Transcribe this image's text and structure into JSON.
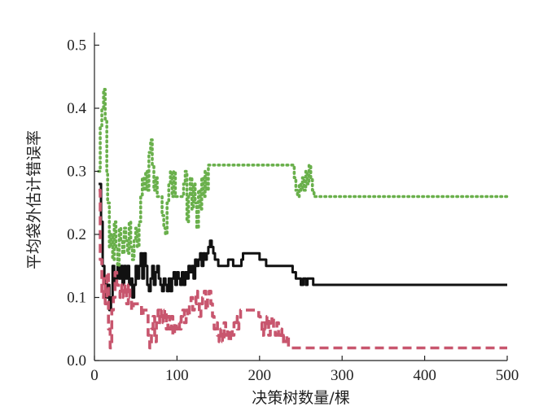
{
  "chart_data": {
    "type": "line",
    "xlabel": "决策树数量/棵",
    "ylabel": "平均袋外估计错误率",
    "xlim": [
      0,
      500
    ],
    "ylim": [
      0,
      0.52
    ],
    "x_ticks": [
      0,
      100,
      200,
      300,
      400,
      500
    ],
    "y_ticks": [
      0.0,
      0.1,
      0.2,
      0.3,
      0.4,
      0.5
    ],
    "x_tick_labels": [
      "0",
      "100",
      "200",
      "300",
      "400",
      "500"
    ],
    "y_tick_labels": [
      "0.0",
      "0.1",
      "0.2",
      "0.3",
      "0.4",
      "0.5"
    ],
    "grid": false,
    "legend": "none",
    "series": [
      {
        "color": "#111111",
        "style": "solid",
        "points": [
          [
            5,
            0.28
          ],
          [
            8,
            0.22
          ],
          [
            10,
            0.15
          ],
          [
            12,
            0.13
          ],
          [
            14,
            0.1
          ],
          [
            16,
            0.12
          ],
          [
            18,
            0.08
          ],
          [
            20,
            0.1
          ],
          [
            22,
            0.15
          ],
          [
            24,
            0.12
          ],
          [
            26,
            0.13
          ],
          [
            28,
            0.15
          ],
          [
            30,
            0.13
          ],
          [
            32,
            0.15
          ],
          [
            34,
            0.12
          ],
          [
            36,
            0.15
          ],
          [
            38,
            0.13
          ],
          [
            40,
            0.15
          ],
          [
            42,
            0.12
          ],
          [
            44,
            0.13
          ],
          [
            46,
            0.1
          ],
          [
            48,
            0.12
          ],
          [
            50,
            0.15
          ],
          [
            52,
            0.13
          ],
          [
            54,
            0.15
          ],
          [
            56,
            0.17
          ],
          [
            58,
            0.13
          ],
          [
            60,
            0.17
          ],
          [
            62,
            0.15
          ],
          [
            64,
            0.12
          ],
          [
            66,
            0.11
          ],
          [
            68,
            0.13
          ],
          [
            70,
            0.15
          ],
          [
            72,
            0.12
          ],
          [
            74,
            0.14
          ],
          [
            76,
            0.15
          ],
          [
            78,
            0.13
          ],
          [
            80,
            0.12
          ],
          [
            82,
            0.11
          ],
          [
            84,
            0.13
          ],
          [
            86,
            0.12
          ],
          [
            88,
            0.11
          ],
          [
            90,
            0.13
          ],
          [
            92,
            0.11
          ],
          [
            94,
            0.13
          ],
          [
            96,
            0.14
          ],
          [
            98,
            0.12
          ],
          [
            100,
            0.14
          ],
          [
            102,
            0.13
          ],
          [
            104,
            0.12
          ],
          [
            106,
            0.14
          ],
          [
            108,
            0.12
          ],
          [
            110,
            0.14
          ],
          [
            112,
            0.13
          ],
          [
            114,
            0.15
          ],
          [
            116,
            0.14
          ],
          [
            118,
            0.15
          ],
          [
            120,
            0.13
          ],
          [
            122,
            0.16
          ],
          [
            124,
            0.15
          ],
          [
            126,
            0.16
          ],
          [
            128,
            0.17
          ],
          [
            130,
            0.15
          ],
          [
            132,
            0.17
          ],
          [
            134,
            0.16
          ],
          [
            136,
            0.17
          ],
          [
            138,
            0.18
          ],
          [
            140,
            0.19
          ],
          [
            142,
            0.18
          ],
          [
            144,
            0.17
          ],
          [
            146,
            0.16
          ],
          [
            150,
            0.15
          ],
          [
            158,
            0.15
          ],
          [
            162,
            0.16
          ],
          [
            168,
            0.15
          ],
          [
            178,
            0.16
          ],
          [
            180,
            0.17
          ],
          [
            198,
            0.17
          ],
          [
            200,
            0.16
          ],
          [
            208,
            0.15
          ],
          [
            238,
            0.15
          ],
          [
            240,
            0.14
          ],
          [
            244,
            0.13
          ],
          [
            250,
            0.12
          ],
          [
            253,
            0.13
          ],
          [
            256,
            0.12
          ],
          [
            258,
            0.13
          ],
          [
            262,
            0.13
          ],
          [
            265,
            0.12
          ],
          [
            500,
            0.12
          ]
        ]
      },
      {
        "color": "#6ab04c",
        "style": "dotted",
        "points": [
          [
            5,
            0.3
          ],
          [
            7,
            0.37
          ],
          [
            9,
            0.4
          ],
          [
            11,
            0.43
          ],
          [
            13,
            0.38
          ],
          [
            15,
            0.3
          ],
          [
            16,
            0.25
          ],
          [
            18,
            0.18
          ],
          [
            20,
            0.2
          ],
          [
            22,
            0.16
          ],
          [
            24,
            0.22
          ],
          [
            26,
            0.18
          ],
          [
            28,
            0.15
          ],
          [
            30,
            0.21
          ],
          [
            32,
            0.19
          ],
          [
            34,
            0.17
          ],
          [
            36,
            0.21
          ],
          [
            38,
            0.19
          ],
          [
            40,
            0.17
          ],
          [
            42,
            0.22
          ],
          [
            44,
            0.18
          ],
          [
            46,
            0.16
          ],
          [
            48,
            0.19
          ],
          [
            50,
            0.21
          ],
          [
            52,
            0.18
          ],
          [
            54,
            0.22
          ],
          [
            56,
            0.26
          ],
          [
            58,
            0.29
          ],
          [
            60,
            0.27
          ],
          [
            62,
            0.3
          ],
          [
            64,
            0.27
          ],
          [
            66,
            0.33
          ],
          [
            68,
            0.35
          ],
          [
            70,
            0.31
          ],
          [
            72,
            0.27
          ],
          [
            74,
            0.29
          ],
          [
            76,
            0.26
          ],
          [
            80,
            0.26
          ],
          [
            82,
            0.23
          ],
          [
            84,
            0.21
          ],
          [
            86,
            0.2
          ],
          [
            88,
            0.25
          ],
          [
            90,
            0.28
          ],
          [
            92,
            0.3
          ],
          [
            94,
            0.26
          ],
          [
            96,
            0.3
          ],
          [
            98,
            0.26
          ],
          [
            106,
            0.26
          ],
          [
            108,
            0.28
          ],
          [
            110,
            0.3
          ],
          [
            112,
            0.22
          ],
          [
            114,
            0.26
          ],
          [
            116,
            0.29
          ],
          [
            118,
            0.24
          ],
          [
            120,
            0.28
          ],
          [
            122,
            0.25
          ],
          [
            124,
            0.21
          ],
          [
            126,
            0.27
          ],
          [
            128,
            0.24
          ],
          [
            130,
            0.29
          ],
          [
            132,
            0.26
          ],
          [
            134,
            0.3
          ],
          [
            136,
            0.27
          ],
          [
            138,
            0.31
          ],
          [
            140,
            0.31
          ],
          [
            240,
            0.31
          ],
          [
            242,
            0.29
          ],
          [
            244,
            0.27
          ],
          [
            246,
            0.26
          ],
          [
            248,
            0.28
          ],
          [
            250,
            0.27
          ],
          [
            252,
            0.29
          ],
          [
            254,
            0.27
          ],
          [
            256,
            0.3
          ],
          [
            258,
            0.28
          ],
          [
            260,
            0.31
          ],
          [
            262,
            0.29
          ],
          [
            264,
            0.27
          ],
          [
            266,
            0.26
          ],
          [
            500,
            0.26
          ]
        ]
      },
      {
        "color": "#c8566e",
        "style": "dashed",
        "points": [
          [
            5,
            0.27
          ],
          [
            7,
            0.16
          ],
          [
            9,
            0.1
          ],
          [
            11,
            0.13
          ],
          [
            13,
            0.09
          ],
          [
            15,
            0.14
          ],
          [
            17,
            0.05
          ],
          [
            19,
            0.02
          ],
          [
            21,
            0.08
          ],
          [
            23,
            0.1
          ],
          [
            25,
            0.14
          ],
          [
            27,
            0.12
          ],
          [
            29,
            0.11
          ],
          [
            31,
            0.1
          ],
          [
            33,
            0.12
          ],
          [
            35,
            0.1
          ],
          [
            37,
            0.12
          ],
          [
            39,
            0.09
          ],
          [
            41,
            0.12
          ],
          [
            43,
            0.1
          ],
          [
            45,
            0.08
          ],
          [
            47,
            0.09
          ],
          [
            55,
            0.09
          ],
          [
            57,
            0.07
          ],
          [
            59,
            0.08
          ],
          [
            63,
            0.08
          ],
          [
            65,
            0.04
          ],
          [
            67,
            0.02
          ],
          [
            69,
            0.05
          ],
          [
            71,
            0.07
          ],
          [
            73,
            0.03
          ],
          [
            75,
            0.06
          ],
          [
            77,
            0.08
          ],
          [
            79,
            0.06
          ],
          [
            81,
            0.08
          ],
          [
            83,
            0.06
          ],
          [
            85,
            0.08
          ],
          [
            87,
            0.05
          ],
          [
            89,
            0.07
          ],
          [
            91,
            0.05
          ],
          [
            93,
            0.07
          ],
          [
            95,
            0.04
          ],
          [
            97,
            0.06
          ],
          [
            99,
            0.05
          ],
          [
            101,
            0.06
          ],
          [
            103,
            0.05
          ],
          [
            105,
            0.07
          ],
          [
            107,
            0.08
          ],
          [
            109,
            0.06
          ],
          [
            111,
            0.08
          ],
          [
            113,
            0.07
          ],
          [
            115,
            0.09
          ],
          [
            117,
            0.1
          ],
          [
            119,
            0.08
          ],
          [
            121,
            0.09
          ],
          [
            123,
            0.11
          ],
          [
            125,
            0.09
          ],
          [
            127,
            0.07
          ],
          [
            129,
            0.09
          ],
          [
            131,
            0.1
          ],
          [
            133,
            0.11
          ],
          [
            135,
            0.08
          ],
          [
            137,
            0.1
          ],
          [
            139,
            0.11
          ],
          [
            141,
            0.09
          ],
          [
            143,
            0.07
          ],
          [
            145,
            0.05
          ],
          [
            147,
            0.06
          ],
          [
            149,
            0.04
          ],
          [
            151,
            0.03
          ],
          [
            153,
            0.05
          ],
          [
            155,
            0.03
          ],
          [
            157,
            0.06
          ],
          [
            159,
            0.04
          ],
          [
            161,
            0.05
          ],
          [
            163,
            0.03
          ],
          [
            165,
            0.05
          ],
          [
            167,
            0.04
          ],
          [
            169,
            0.06
          ],
          [
            171,
            0.07
          ],
          [
            173,
            0.05
          ],
          [
            175,
            0.06
          ],
          [
            177,
            0.08
          ],
          [
            197,
            0.08
          ],
          [
            199,
            0.07
          ],
          [
            201,
            0.06
          ],
          [
            203,
            0.04
          ],
          [
            205,
            0.06
          ],
          [
            207,
            0.05
          ],
          [
            209,
            0.07
          ],
          [
            211,
            0.04
          ],
          [
            213,
            0.06
          ],
          [
            215,
            0.07
          ],
          [
            217,
            0.05
          ],
          [
            219,
            0.04
          ],
          [
            221,
            0.06
          ],
          [
            223,
            0.04
          ],
          [
            225,
            0.05
          ],
          [
            227,
            0.03
          ],
          [
            229,
            0.04
          ],
          [
            231,
            0.03
          ],
          [
            233,
            0.04
          ],
          [
            235,
            0.02
          ],
          [
            500,
            0.02
          ]
        ]
      }
    ]
  }
}
